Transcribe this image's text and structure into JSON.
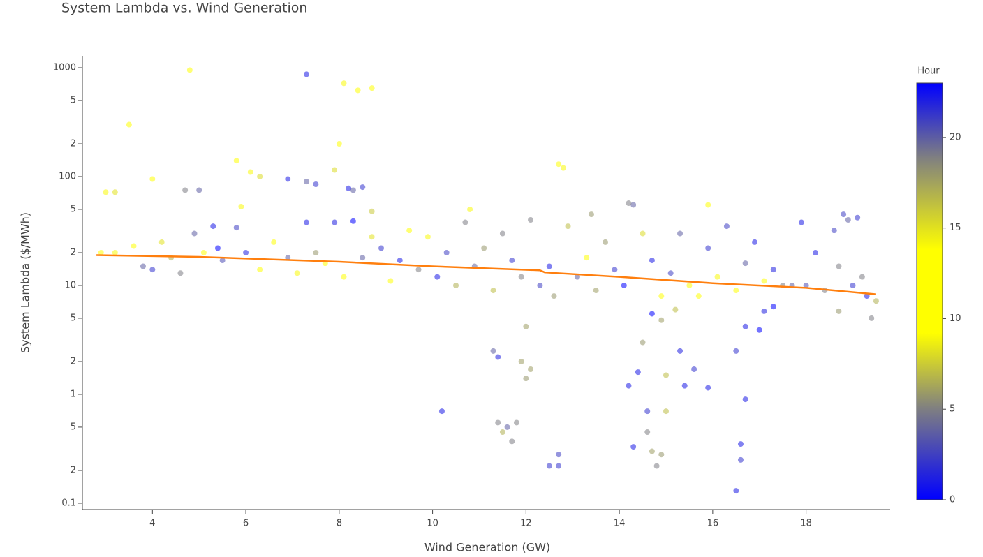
{
  "chart_data": {
    "type": "scatter",
    "title": "System Lambda vs. Wind Generation",
    "x_label": "Wind Generation (GW)",
    "y_label": "System Lambda ($/MWh)",
    "log_y": true,
    "xlim": [
      2.5,
      19.8
    ],
    "ylim": [
      0.0875,
      1285
    ],
    "xticks": [
      4,
      6,
      8,
      10,
      12,
      14,
      16,
      18
    ],
    "yticks": [
      0.1,
      {
        "value": 0.2,
        "label": "2"
      },
      {
        "value": 0.5,
        "label": "5"
      },
      1,
      {
        "value": 2,
        "label": "2"
      },
      {
        "value": 5,
        "label": "5"
      },
      10,
      {
        "value": 20,
        "label": "2"
      },
      {
        "value": 50,
        "label": "5"
      },
      100,
      {
        "value": 200,
        "label": "2"
      },
      {
        "value": 500,
        "label": "5"
      },
      1000
    ],
    "points": {
      "x": [
        4.8,
        7.3,
        8.1,
        8.4,
        8.7,
        3.5,
        8,
        7.9,
        5.8,
        6.1,
        6.3,
        6.9,
        7.3,
        7.5,
        8.2,
        8.3,
        8.5,
        12.7,
        12.8,
        3,
        3.2,
        4,
        4.7,
        5,
        10.2,
        11.3,
        11.4,
        11.4,
        11.5,
        11.6,
        11.7,
        11.8,
        11.9,
        12,
        12,
        12.1,
        12.5,
        12.7,
        12.7,
        14.2,
        14.4,
        14.6,
        14.3,
        14.6,
        14.7,
        14.8,
        14.9,
        15,
        15,
        15.3,
        15.4,
        15.6,
        15.9,
        16.5,
        16.6,
        16.6,
        16.7,
        16.5,
        16.7,
        17,
        17.1,
        17.3,
        14.7,
        14.5,
        14.9,
        15.2,
        18.8,
        18.9,
        19.1,
        18.6,
        18.2,
        18.7,
        19.2,
        19.3,
        19.4,
        18.7,
        19.5,
        2.9,
        3.2,
        3.6,
        3.8,
        4,
        4.2,
        4.4,
        4.6,
        4.9,
        5.1,
        5.3,
        5.4,
        5.5,
        5.8,
        6,
        6.3,
        6.6,
        6.9,
        7.1,
        7.3,
        7.5,
        7.7,
        7.9,
        8.1,
        8.3,
        8.5,
        8.7,
        8.9,
        9.1,
        9.3,
        9.5,
        9.7,
        9.9,
        10.1,
        10.3,
        10.5,
        10.7,
        10.9,
        11.1,
        11.3,
        11.5,
        11.7,
        11.9,
        12.1,
        12.3,
        12.5,
        12.6,
        12.9,
        13.1,
        13.3,
        13.5,
        13.7,
        13.9,
        14.1,
        14.3,
        14.5,
        14.7,
        14.9,
        15.1,
        15.3,
        15.5,
        15.7,
        15.9,
        16.1,
        16.3,
        16.5,
        16.7,
        16.9,
        17.1,
        17.3,
        17.5,
        17.7,
        17.9,
        18,
        18.4,
        19,
        5.9,
        8.7,
        10.8,
        15.9,
        14.2,
        13.4
      ],
      "y": [
        950,
        870,
        720,
        620,
        650,
        300,
        200,
        115,
        140,
        110,
        100,
        95,
        90,
        85,
        78,
        75,
        80,
        130,
        120,
        72,
        72,
        95,
        75,
        75,
        0.7,
        2.5,
        2.2,
        0.55,
        0.45,
        0.5,
        0.37,
        0.55,
        2,
        1.4,
        4.2,
        1.7,
        0.22,
        0.22,
        0.28,
        1.2,
        1.6,
        0.7,
        0.33,
        0.45,
        0.3,
        0.22,
        0.28,
        0.7,
        1.5,
        2.5,
        1.2,
        1.7,
        1.15,
        0.13,
        0.35,
        0.25,
        0.9,
        2.5,
        4.2,
        3.9,
        5.8,
        6.4,
        5.5,
        3,
        4.8,
        6,
        45,
        40,
        42,
        32,
        20,
        15,
        12,
        8,
        5,
        5.8,
        7.2,
        20,
        20,
        23,
        15,
        14,
        25,
        18,
        13,
        30,
        20,
        35,
        22,
        17,
        34,
        20,
        14,
        25,
        18,
        13,
        38,
        20,
        16,
        38,
        12,
        39,
        18,
        28,
        22,
        11,
        17,
        32,
        14,
        28,
        12,
        20,
        10,
        38,
        15,
        22,
        9,
        30,
        17,
        12,
        40,
        10,
        15,
        8,
        35,
        12,
        18,
        9,
        25,
        14,
        10,
        55,
        30,
        17,
        8,
        13,
        30,
        10,
        8,
        22,
        12,
        35,
        9,
        16,
        25,
        11,
        14,
        10,
        10,
        38,
        10,
        9,
        10,
        53,
        48,
        50,
        55,
        57,
        45
      ],
      "hour": [
        13,
        1,
        14,
        13,
        12,
        10,
        12,
        8,
        10,
        9,
        8,
        1,
        20,
        2,
        1,
        20,
        2,
        10,
        9,
        14,
        15,
        13,
        19,
        20,
        1,
        20,
        22,
        19,
        17,
        20,
        19,
        5,
        6,
        18,
        6,
        6,
        2,
        2,
        21,
        1,
        1,
        2,
        1,
        5,
        6,
        19,
        18,
        7,
        7,
        22,
        1,
        2,
        1,
        1,
        1,
        2,
        1,
        2,
        1,
        0,
        22,
        23,
        0,
        18,
        6,
        7,
        21,
        20,
        2,
        21,
        1,
        19,
        19,
        1,
        19,
        18,
        17,
        13,
        14,
        13,
        20,
        2,
        15,
        17,
        19,
        20,
        12,
        1,
        0,
        3,
        21,
        22,
        12,
        13,
        20,
        14,
        1,
        18,
        10,
        22,
        12,
        0,
        20,
        15,
        2,
        13,
        1,
        13,
        5,
        9,
        1,
        21,
        17,
        19,
        4,
        18,
        7,
        19,
        2,
        5,
        19,
        21,
        1,
        18,
        7,
        20,
        11,
        6,
        18,
        2,
        0,
        20,
        8,
        1,
        11,
        21,
        20,
        13,
        12,
        2,
        14,
        21,
        13,
        20,
        1,
        10,
        22,
        19,
        20,
        1,
        3,
        19,
        2,
        14,
        16,
        14,
        12,
        19,
        18
      ]
    },
    "trend": {
      "color": "#ff7f0e",
      "x": [
        2.8,
        5,
        8,
        10,
        12.3,
        12.4,
        14,
        16,
        18,
        19.5
      ],
      "y": [
        19,
        18.3,
        16.5,
        15,
        13.8,
        13.2,
        12,
        10.5,
        9.5,
        8.3
      ]
    },
    "colorbar": {
      "title": "Hour",
      "lim": [
        0,
        23
      ],
      "ticks": [
        0,
        5,
        10,
        15,
        20
      ],
      "colorscale": [
        [
          0,
          "#0000ff"
        ],
        [
          0.22,
          "#808080"
        ],
        [
          0.4,
          "#ffff00"
        ],
        [
          0.6,
          "#ffff00"
        ],
        [
          0.82,
          "#808080"
        ],
        [
          1,
          "#0000ff"
        ]
      ]
    }
  }
}
